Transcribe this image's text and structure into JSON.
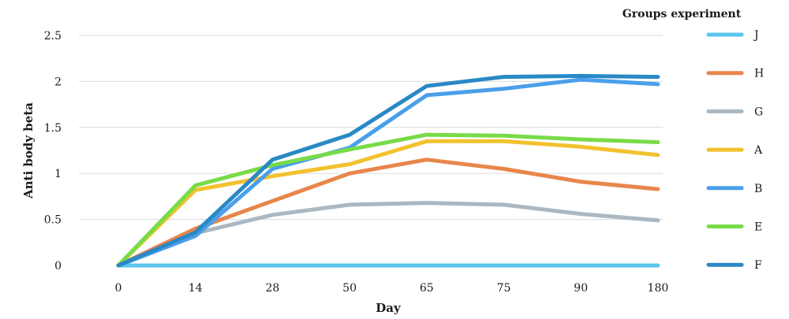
{
  "chart_data": {
    "type": "line",
    "title": "",
    "xlabel": "Day",
    "ylabel": "Anti body beta",
    "categories": [
      "0",
      "14",
      "28",
      "50",
      "65",
      "75",
      "90",
      "180"
    ],
    "yticks": [
      "0",
      "0.5",
      "1",
      "1.5",
      "2",
      "2.5"
    ],
    "ylim": [
      0,
      2.5
    ],
    "grid": true,
    "legend_title": "Groups experiment",
    "legend_position": "right",
    "series": [
      {
        "name": "J",
        "color": "#5bc5ee",
        "values": [
          0,
          0,
          0,
          0,
          0,
          0,
          0,
          0
        ]
      },
      {
        "name": "H",
        "color": "#e8864a",
        "values": [
          0,
          0.4,
          0.7,
          1.0,
          1.15,
          1.05,
          0.91,
          0.83
        ]
      },
      {
        "name": "G",
        "color": "#aab8c2",
        "values": [
          0,
          0.35,
          0.55,
          0.66,
          0.68,
          0.66,
          0.56,
          0.49
        ]
      },
      {
        "name": "A",
        "color": "#f2c12e",
        "values": [
          0,
          0.82,
          0.97,
          1.1,
          1.35,
          1.35,
          1.29,
          1.2
        ]
      },
      {
        "name": "B",
        "color": "#4a9fea",
        "values": [
          0,
          0.32,
          1.05,
          1.28,
          1.85,
          1.92,
          2.02,
          1.97
        ]
      },
      {
        "name": "E",
        "color": "#78db48",
        "values": [
          0,
          0.87,
          1.09,
          1.26,
          1.42,
          1.41,
          1.37,
          1.34
        ]
      },
      {
        "name": "F",
        "color": "#2a88c6",
        "values": [
          0,
          0.36,
          1.15,
          1.42,
          1.95,
          2.05,
          2.06,
          2.05
        ]
      }
    ]
  }
}
